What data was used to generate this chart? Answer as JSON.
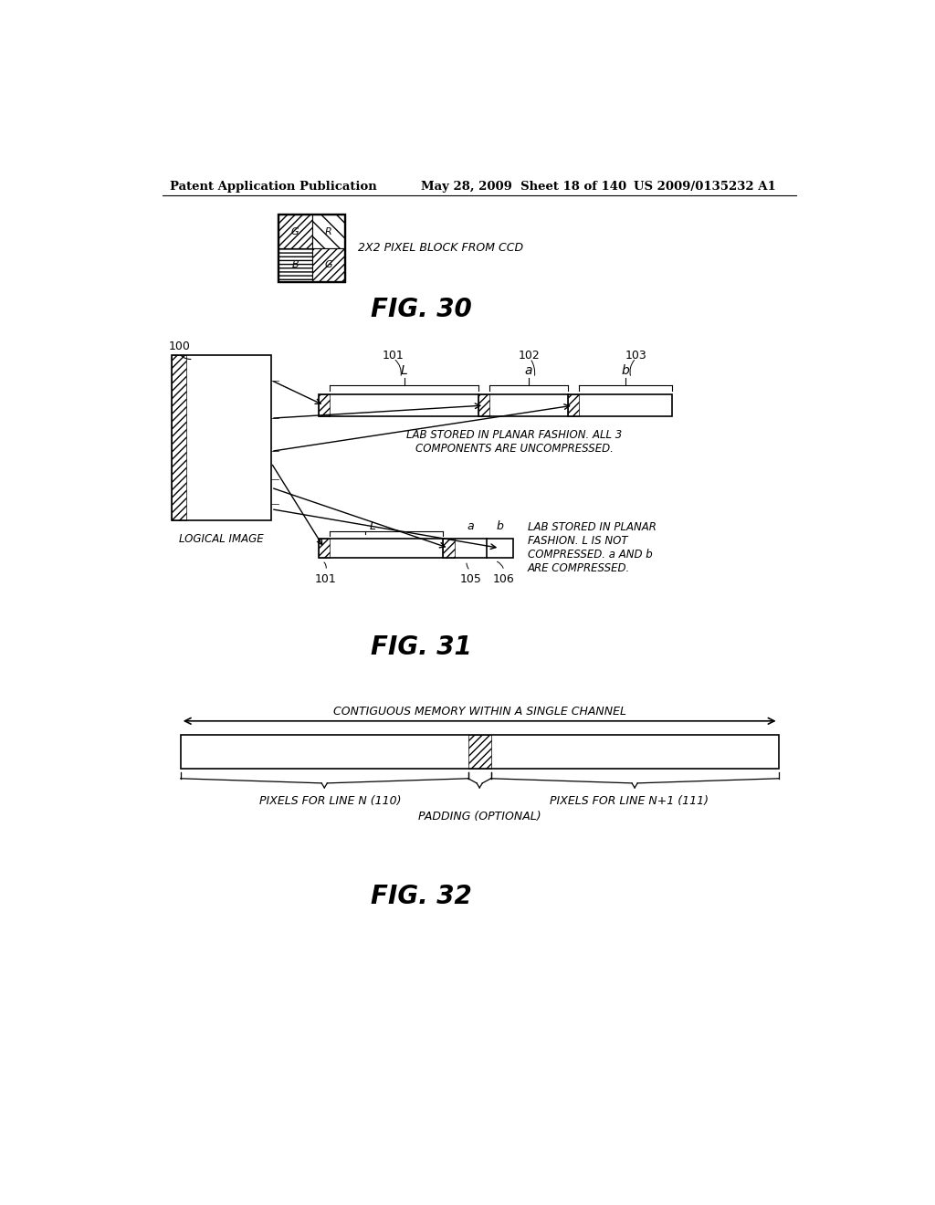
{
  "header_left": "Patent Application Publication",
  "header_mid": "May 28, 2009  Sheet 18 of 140",
  "header_right": "US 2009/0135232 A1",
  "fig30_caption": "FIG. 30",
  "fig31_caption": "FIG. 31",
  "fig32_caption": "FIG. 32",
  "fig30_label": "2X2 PIXEL BLOCK FROM CCD",
  "fig31_label1": "LAB STORED IN PLANAR FASHION. ALL 3\nCOMPONENTS ARE UNCOMPRESSED.",
  "fig31_label2": "LAB STORED IN PLANAR\nFASHION. L IS NOT\nCOMPRESSED. a AND b\nARE COMPRESSED.",
  "fig31_logical": "LOGICAL IMAGE",
  "fig32_label_top": "CONTIGUOUS MEMORY WITHIN A SINGLE CHANNEL",
  "fig32_label_left": "PIXELS FOR LINE N (110)",
  "fig32_label_right": "PIXELS FOR LINE N+1 (111)",
  "fig32_label_mid": "PADDING (OPTIONAL)",
  "bg_color": "#ffffff",
  "line_color": "#000000"
}
